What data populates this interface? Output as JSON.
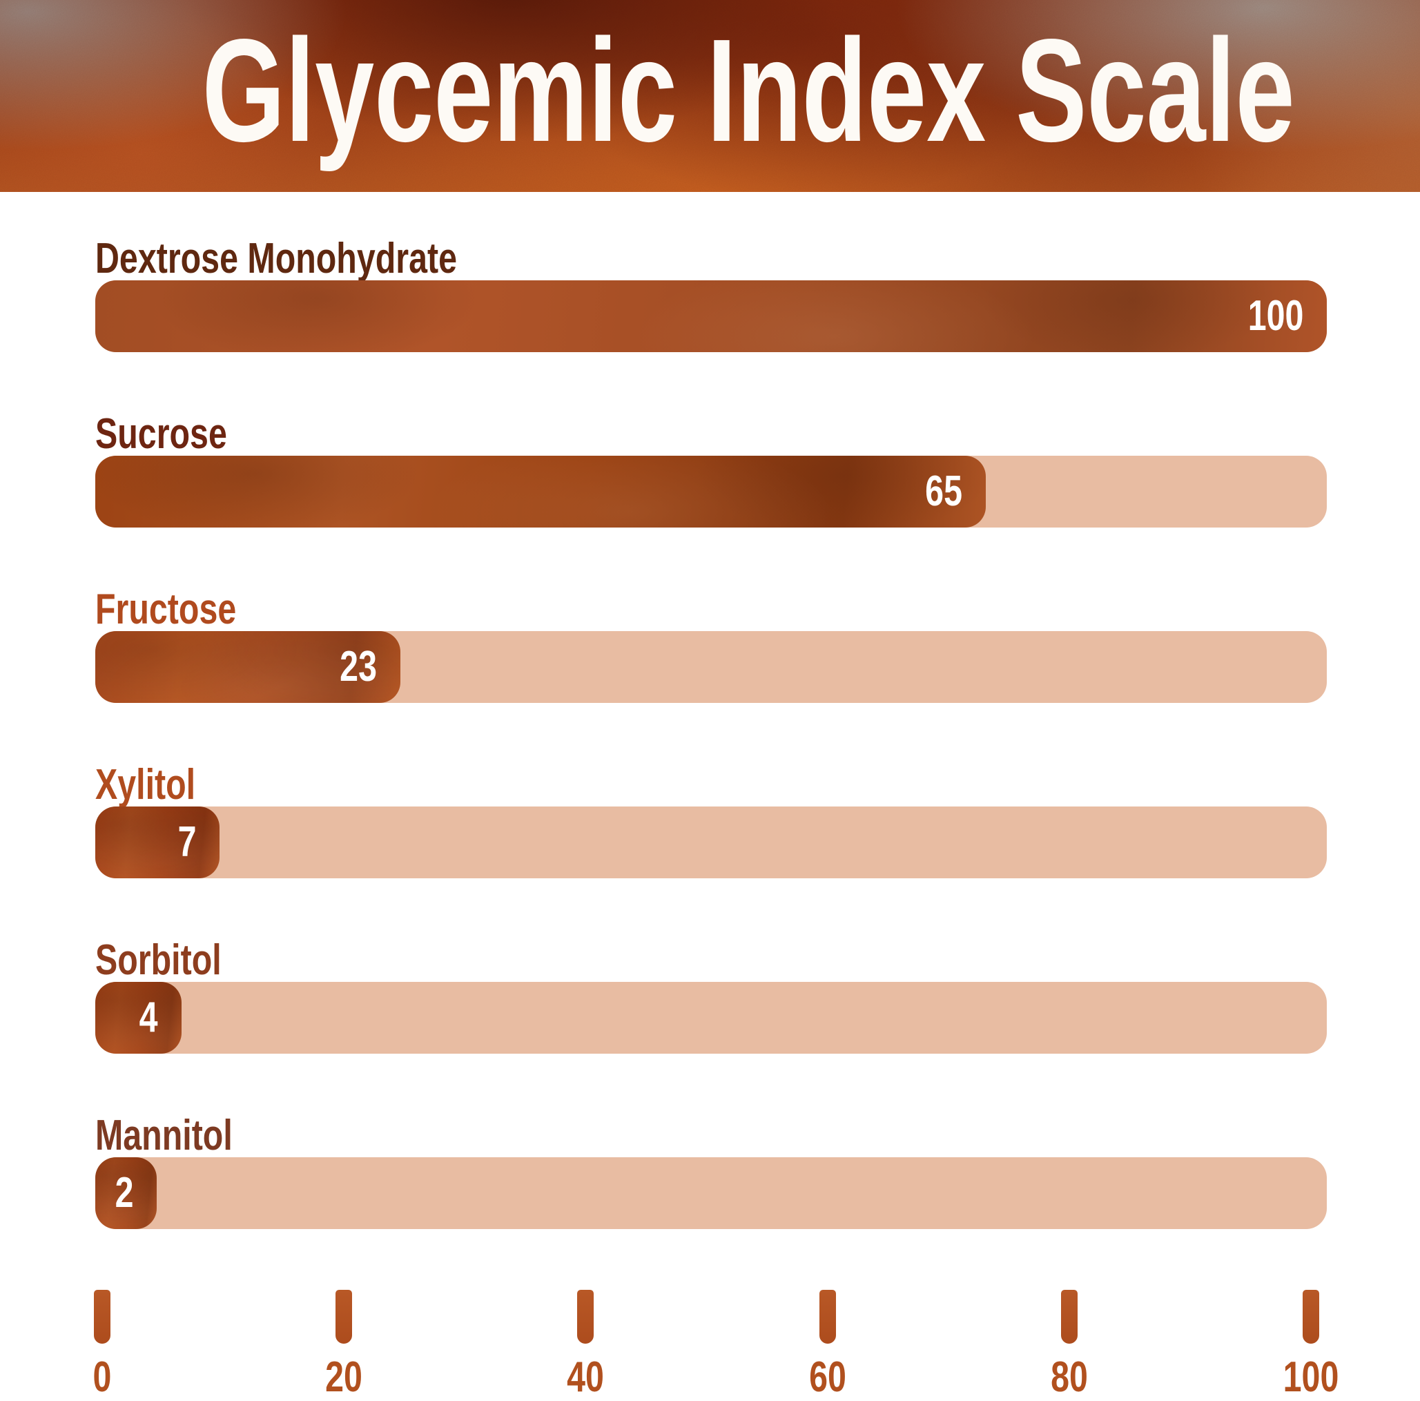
{
  "title": "Glycemic Index Scale",
  "chart_data": {
    "type": "bar",
    "orientation": "horizontal",
    "title": "Glycemic Index Scale",
    "categories": [
      "Dextrose Monohydrate",
      "Sucrose",
      "Fructose",
      "Xylitol",
      "Sorbitol",
      "Mannitol"
    ],
    "values": [
      100,
      65,
      23,
      7,
      4,
      2
    ],
    "xlim": [
      0,
      100
    ],
    "x_ticks": [
      0,
      20,
      40,
      60,
      80,
      100
    ],
    "value_labels": "inside bar end, white",
    "grid": false,
    "legend": false
  },
  "bars": [
    {
      "label": "Dextrose Monohydrate",
      "value": "100",
      "fill_pct": 100,
      "label_color": "#5f2810",
      "fill_colors": [
        "#a24d24",
        "#b05429",
        "#8c431f"
      ]
    },
    {
      "label": "Sucrose",
      "value": "65",
      "fill_pct": 72.3,
      "label_color": "#6d2511",
      "fill_colors": [
        "#9c4314",
        "#ad5424",
        "#833711"
      ]
    },
    {
      "label": "Fructose",
      "value": "23",
      "fill_pct": 24.8,
      "label_color": "#b04a1e",
      "fill_colors": [
        "#a84a1e",
        "#b5531f",
        "#94401a"
      ]
    },
    {
      "label": "Xylitol",
      "value": "7",
      "fill_pct": 10.1,
      "label_color": "#b04c1e",
      "fill_colors": [
        "#a63f13",
        "#b34e1c",
        "#8f330e"
      ]
    },
    {
      "label": "Sorbitol",
      "value": "4",
      "fill_pct": 7.0,
      "label_color": "#8d3d1e",
      "fill_colors": [
        "#a64012",
        "#b24c19",
        "#90370f"
      ]
    },
    {
      "label": "Mannitol",
      "value": "2",
      "fill_pct": 5.0,
      "label_color": "#7d3a22",
      "fill_colors": [
        "#aa4517",
        "#b54f1d",
        "#943a10"
      ]
    }
  ],
  "axis": {
    "ticks": [
      "0",
      "20",
      "40",
      "60",
      "80",
      "100"
    ]
  },
  "colors": {
    "title_text": "#fdfaf5",
    "header_base": "#9c3d14",
    "track": "#e8bca2",
    "value_text": "#ffffff",
    "tick_mark": "#b35122",
    "axis_label": "#b1501e"
  }
}
